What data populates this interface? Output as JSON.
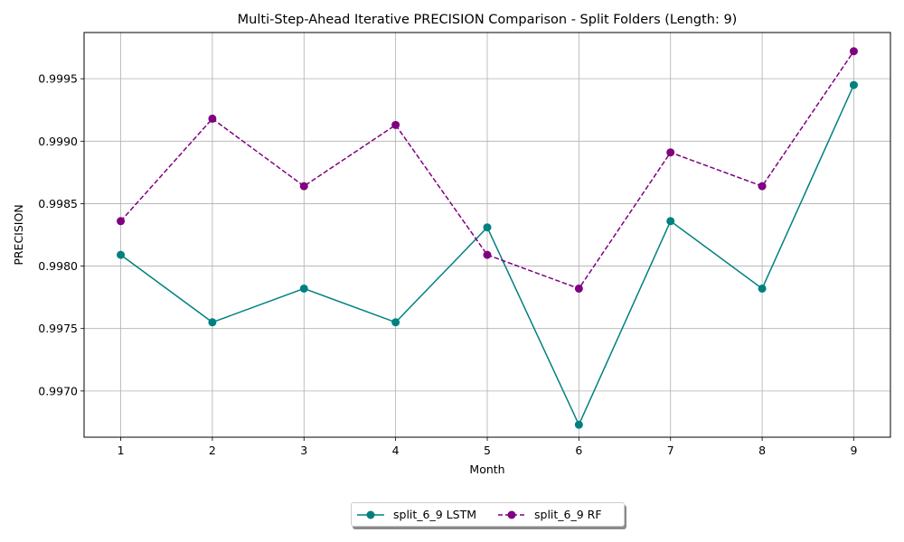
{
  "chart_data": {
    "type": "line",
    "title": "Multi-Step-Ahead Iterative PRECISION Comparison - Split Folders (Length: 9)",
    "xlabel": "Month",
    "ylabel": "PRECISION",
    "x": [
      1,
      2,
      3,
      4,
      5,
      6,
      7,
      8,
      9
    ],
    "xlim": [
      0.6,
      9.4
    ],
    "ylim": [
      0.99663,
      0.99987
    ],
    "yticks": [
      "0.9970",
      "0.9975",
      "0.9980",
      "0.9985",
      "0.9990",
      "0.9995"
    ],
    "ytick_values": [
      0.997,
      0.9975,
      0.998,
      0.9985,
      0.999,
      0.9995
    ],
    "xticks": [
      "1",
      "2",
      "3",
      "4",
      "5",
      "6",
      "7",
      "8",
      "9"
    ],
    "grid": true,
    "legend_position": "bottom-center",
    "series": [
      {
        "name": "split_6_9 LSTM",
        "color": "#008080",
        "linestyle": "solid",
        "marker": "circle",
        "values": [
          0.99809,
          0.99755,
          0.99782,
          0.99755,
          0.99831,
          0.99673,
          0.99836,
          0.99782,
          0.99945
        ]
      },
      {
        "name": "split_6_9 RF",
        "color": "#800080",
        "linestyle": "dashed",
        "marker": "circle",
        "values": [
          0.99836,
          0.99918,
          0.99864,
          0.99913,
          0.99809,
          0.99782,
          0.99891,
          0.99864,
          0.99972
        ]
      }
    ]
  }
}
